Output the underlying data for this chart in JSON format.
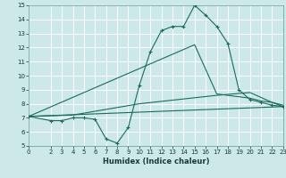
{
  "background_color": "#cce8e8",
  "grid_color": "#ffffff",
  "line_color": "#1a6b5a",
  "xlabel": "Humidex (Indice chaleur)",
  "xlim": [
    0,
    23
  ],
  "ylim": [
    5,
    15
  ],
  "xticks": [
    0,
    2,
    3,
    4,
    5,
    6,
    7,
    8,
    9,
    10,
    11,
    12,
    13,
    14,
    15,
    16,
    17,
    18,
    19,
    20,
    21,
    22,
    23
  ],
  "yticks": [
    5,
    6,
    7,
    8,
    9,
    10,
    11,
    12,
    13,
    14,
    15
  ],
  "series1_x": [
    0,
    2,
    3,
    4,
    5,
    6,
    7,
    8,
    9,
    10,
    11,
    12,
    13,
    14,
    15,
    16,
    17,
    18,
    19,
    20,
    21,
    22,
    23
  ],
  "series1_y": [
    7.1,
    6.8,
    6.8,
    7.0,
    7.0,
    6.9,
    5.5,
    5.2,
    6.3,
    9.3,
    11.7,
    13.2,
    13.5,
    13.5,
    15.0,
    14.3,
    13.5,
    12.3,
    9.0,
    8.3,
    8.1,
    7.9,
    7.8
  ],
  "series2_x": [
    0,
    15,
    17,
    20,
    21,
    22,
    23
  ],
  "series2_y": [
    7.1,
    12.2,
    8.7,
    8.4,
    8.2,
    8.1,
    7.9
  ],
  "series3_x": [
    0,
    4,
    10,
    17,
    20,
    22,
    23
  ],
  "series3_y": [
    7.1,
    7.2,
    8.0,
    8.6,
    8.8,
    8.1,
    7.8
  ],
  "series4_x": [
    0,
    23
  ],
  "series4_y": [
    7.1,
    7.8
  ]
}
